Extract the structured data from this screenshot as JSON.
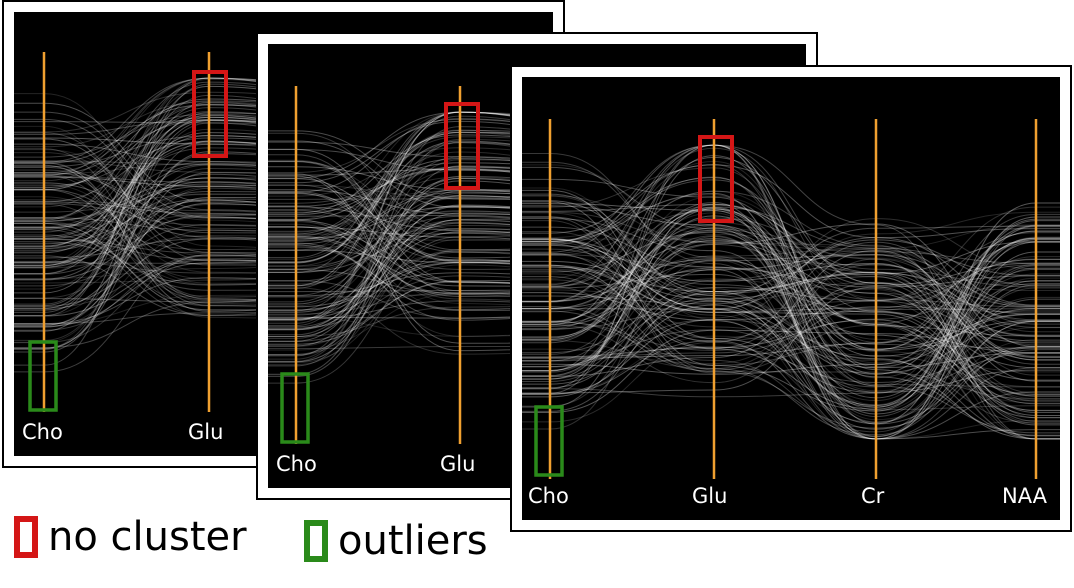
{
  "colors": {
    "axis": "#f0a030",
    "no_cluster": "#d41616",
    "outliers": "#2a8a1a",
    "lines": "#ffffff",
    "panel_bg": "#000000"
  },
  "panels": [
    {
      "axis_labels": [
        "Cho",
        "Glu"
      ]
    },
    {
      "axis_labels": [
        "Cho",
        "Glu"
      ]
    },
    {
      "axis_labels": [
        "Cho",
        "Glu",
        "Cr",
        "NAA"
      ]
    }
  ],
  "legend": {
    "no_cluster": "no cluster",
    "outliers": "outliers"
  }
}
